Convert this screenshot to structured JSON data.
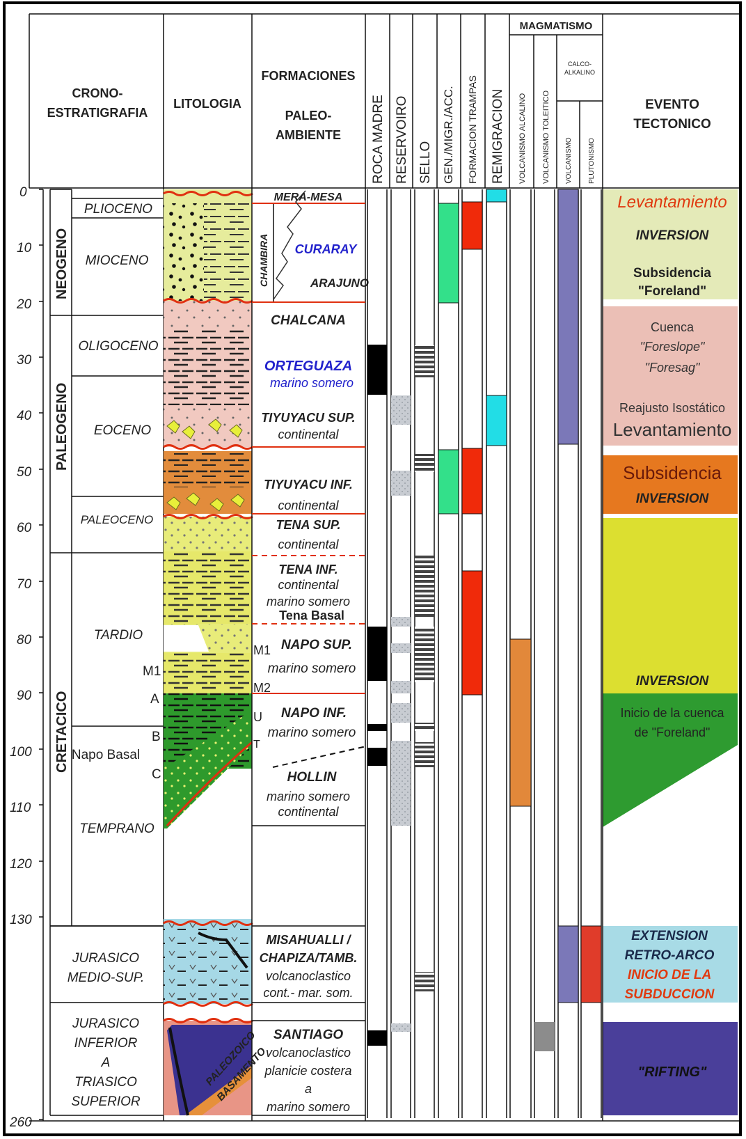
{
  "headers": {
    "crono1": "CRONO-",
    "crono2": "ESTRATIGRAFIA",
    "litologia": "LITOLOGIA",
    "formaciones": "FORMACIONES",
    "paleo": "PALEO-",
    "ambiente": "AMBIENTE",
    "roca_madre": "ROCA MADRE",
    "reservoiro": "RESERVOIRO",
    "sello": "SELLO",
    "gen": "GEN./MIGR./ACC.",
    "trampas": "FORMACION TRAMPAS",
    "remigracion": "REMIGRACION",
    "magmatismo": "MAGMATISMO",
    "volc_alcalino": "VOLCANISMO ALCALINO",
    "volc_toleitico": "VOLCANISMO TOLEITICO",
    "calco1": "CALCO-",
    "calco2": "ALKALINO",
    "volcanismo": "VOLCANISMO",
    "plutonismo": "PLUTONISMO",
    "evento1": "EVENTO",
    "evento2": "TECTONICO"
  },
  "axis_labels": [
    "0",
    "10",
    "20",
    "30",
    "40",
    "50",
    "60",
    "70",
    "80",
    "90",
    "100",
    "110",
    "120",
    "130",
    "260"
  ],
  "periods": {
    "neogeno": "NEOGENO",
    "paleogeno": "PALEOGENO",
    "cretacico": "CRETACICO"
  },
  "epochs": {
    "plioceno": "PLIOCENO",
    "mioceno": "MIOCENO",
    "oligoceno": "OLIGOCENO",
    "eoceno": "EOCENO",
    "paleoceno": "PALEOCENO",
    "tardio": "TARDIO",
    "napo_basal": "Napo Basal",
    "temprano": "TEMPRANO",
    "jur_medio_1": "JURASICO",
    "jur_medio_2": "MEDIO-SUP.",
    "jur_inf_1": "JURASICO",
    "jur_inf_2": "INFERIOR",
    "jur_inf_3": "A",
    "jur_inf_4": "TRIASICO",
    "jur_inf_5": "SUPERIOR"
  },
  "markers": {
    "m1": "M1",
    "a": "A",
    "b": "B",
    "c": "C",
    "m1b": "M1",
    "m2": "M2",
    "u": "U",
    "t": "T"
  },
  "lith_text": {
    "paleozoico": "PALEOZOICO",
    "basamento": "BASAMENTO"
  },
  "formations": {
    "mera": "MERA-MESA",
    "chambira": "CHAMBIRA",
    "curaray": "CURARAY",
    "arajuno": "ARAJUNO",
    "chalcana": "CHALCANA",
    "orteguaza": "ORTEGUAZA",
    "orteguaza_env": "marino somero",
    "tiyuyacu_sup": "TIYUYACU SUP.",
    "tiyuyacu_sup_env": "continental",
    "tiyuyacu_inf": "TIYUYACU INF.",
    "tiyuyacu_inf_env": "continental",
    "tena_sup": "TENA SUP.",
    "tena_sup_env": "continental",
    "tena_inf": "TENA INF.",
    "tena_inf_env1": "continental",
    "tena_inf_env2": "marino somero",
    "tena_basal": "Tena Basal",
    "napo_sup": "NAPO SUP.",
    "napo_sup_env": "marino somero",
    "napo_inf": "NAPO INF.",
    "napo_inf_env": "marino somero",
    "hollin": "HOLLIN",
    "hollin_env1": "marino somero",
    "hollin_env2": "continental",
    "misahualli1": "MISAHUALLI /",
    "misahualli2": "CHAPIZA/TAMB.",
    "misahualli_env1": "volcanoclastico",
    "misahualli_env2": "cont.- mar. som.",
    "santiago": "SANTIAGO",
    "santiago_env1": "volcanoclastico",
    "santiago_env2": "planicie costera",
    "santiago_env3": "a",
    "santiago_env4": "marino somero"
  },
  "events": {
    "lev1": "Levantamiento",
    "inversion1": "INVERSION",
    "subsidencia1": "Subsidencia",
    "foreland": "\"Foreland\"",
    "cuenca": "Cuenca",
    "foreslope": "\"Foreslope\"",
    "foresag": "\"Foresag\"",
    "reajuste": "Reajusto Isostático",
    "lev2": "Levantamiento",
    "subsidencia2": "Subsidencia",
    "inversion2": "INVERSION",
    "inversion3": "INVERSION",
    "inicio1": "Inicio de la cuenca",
    "inicio2": "de \"Foreland\"",
    "extension": "EXTENSION",
    "retro": "RETRO-ARCO",
    "subd1": "INICIO DE LA",
    "subd2": "SUBDUCCION",
    "rifting": "\"RIFTING\""
  },
  "colors": {
    "roca_madre": "#000000",
    "reservoiro": "#c8ccd2",
    "gen": "#33e08a",
    "trampas": "#f02a0a",
    "remigracion": "#22dde6",
    "alcalino": "#e2883a",
    "toleitico": "#8c8c8c",
    "calco": "#7b78b8",
    "plutonismo": "#e03c2a",
    "neogene_event": "#e4eab8",
    "paleogene_event": "#ebbfb6",
    "orange_event": "#e6781f",
    "yellow_event": "#dcdf30",
    "green_event": "#2e9b30",
    "blue_event": "#a8dbe6",
    "purple_event": "#4a3f9a"
  }
}
